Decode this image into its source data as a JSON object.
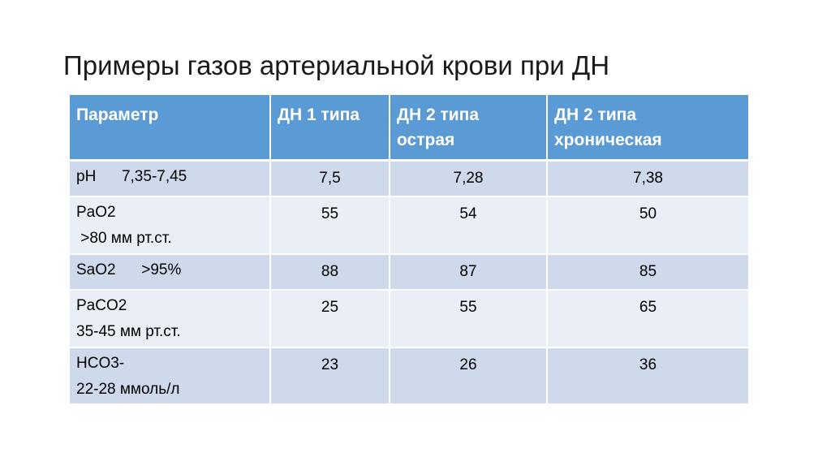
{
  "title": "Примеры газов артериальной крови при ДН",
  "table": {
    "headers": {
      "param": "Параметр",
      "dn1": "ДН 1 типа",
      "dn2_acute_line1": "ДН 2 типа",
      "dn2_acute_line2": "острая",
      "dn2_chronic_line1": "ДН 2 типа",
      "dn2_chronic_line2": "хроническая"
    },
    "rows": [
      {
        "param_line1": "pH      7,35-7,45",
        "param_line2": "",
        "dn1": "7,5",
        "dn2_acute": "7,28",
        "dn2_chronic": "7,38"
      },
      {
        "param_line1": "PaO2",
        "param_line2": " >80 мм рт.ст.",
        "dn1": "55",
        "dn2_acute": "54",
        "dn2_chronic": "50"
      },
      {
        "param_line1": "SaO2      >95%",
        "param_line2": "",
        "dn1": "88",
        "dn2_acute": "87",
        "dn2_chronic": "85"
      },
      {
        "param_line1": "PaCO2",
        "param_line2": "35-45 мм рт.ст.",
        "dn1": "25",
        "dn2_acute": "55",
        "dn2_chronic": "65"
      },
      {
        "param_line1": "HCO3-",
        "param_line2": "22-28 ммоль/л",
        "dn1": "23",
        "dn2_acute": "26",
        "dn2_chronic": "36"
      }
    ]
  },
  "colors": {
    "header_bg": "#5b9bd5",
    "row_band_dark": "#cfd9ec",
    "row_band_light": "#e9eef7"
  }
}
